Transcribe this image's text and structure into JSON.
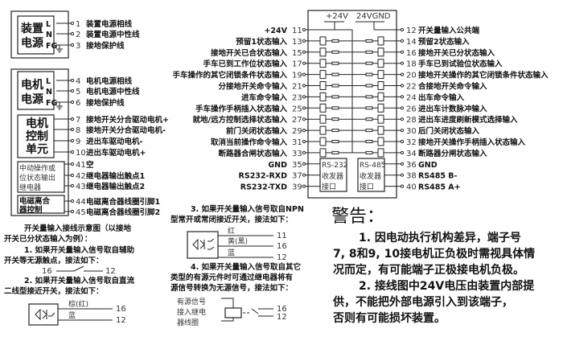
{
  "power_device": {
    "title1": "装置",
    "title2": "电源",
    "pins": [
      "L",
      "N",
      "FG"
    ],
    "terminals": [
      {
        "num": "1",
        "label": "装置电源相线"
      },
      {
        "num": "2",
        "label": "装置电源中性线"
      },
      {
        "num": "3",
        "label": "接地保护线"
      }
    ]
  },
  "power_motor": {
    "title1": "电机",
    "title2": "电源",
    "pins": [
      "L",
      "N",
      "FG"
    ],
    "terminals": [
      {
        "num": "4",
        "label": "电机电源相线"
      },
      {
        "num": "5",
        "label": "电机电源中性线"
      },
      {
        "num": "6",
        "label": "接地保护线"
      }
    ]
  },
  "motor_control": {
    "title": [
      "电机",
      "控制",
      "单元"
    ],
    "terminals": [
      {
        "num": "7",
        "label": "接地开关分合驱动电机+"
      },
      {
        "num": "8",
        "label": "接地开关分合驱动电机-"
      },
      {
        "num": "9",
        "label": "进出车驱动电机-"
      },
      {
        "num": "10",
        "label": "进出车驱动电机+"
      }
    ]
  },
  "relay": {
    "title": [
      "中动操作或",
      "位状态输出",
      "继电器"
    ],
    "terminals": [
      {
        "num": "41",
        "label": "空"
      },
      {
        "num": "42",
        "label": "继电器输出触点1"
      },
      {
        "num": "43",
        "label": "继电器输出触点2"
      }
    ]
  },
  "clutch": {
    "title": [
      "电磁离合",
      "器控制"
    ],
    "terminals": [
      {
        "num": "44",
        "label": "电磁离合器线圈引脚1"
      },
      {
        "num": "45",
        "label": "电磁离合器线圈引脚2"
      }
    ]
  },
  "io_block": {
    "bus_labels": [
      "+24V",
      "24VGND"
    ],
    "left": [
      {
        "num": "11",
        "label": "+24V"
      },
      {
        "num": "13",
        "label": "预留1状态输入"
      },
      {
        "num": "15",
        "label": "接地开关已合状态输入"
      },
      {
        "num": "17",
        "label": "手车已到工作位状态输入"
      },
      {
        "num": "19",
        "label": "手车操作的其它闭锁条件状态输入"
      },
      {
        "num": "21",
        "label": "分接地开关命令输入"
      },
      {
        "num": "23",
        "label": "进车命令输入"
      },
      {
        "num": "25",
        "label": "手车操作手柄插入状态输入"
      },
      {
        "num": "27",
        "label": "就地/远方控制选择状态输入"
      },
      {
        "num": "29",
        "label": "前门关闭状态输入"
      },
      {
        "num": "31",
        "label": "取消当前操作命令输入"
      },
      {
        "num": "33",
        "label": "断路器合闸状态输入"
      },
      {
        "num": "35",
        "label": "GND"
      },
      {
        "num": "37",
        "label": "RS232-RXD"
      },
      {
        "num": "39",
        "label": "RS232-TXD"
      }
    ],
    "right": [
      {
        "num": "12",
        "label": "开关量输入公共端"
      },
      {
        "num": "14",
        "label": "预留2状态输入"
      },
      {
        "num": "16",
        "label": "接地开关已分状态输入"
      },
      {
        "num": "18",
        "label": "手车已到试验位状态输入"
      },
      {
        "num": "20",
        "label": "接地开关操作的其它闭锁条件状态输入"
      },
      {
        "num": "22",
        "label": "合接地开关命令输入"
      },
      {
        "num": "24",
        "label": "出车命令输入"
      },
      {
        "num": "26",
        "label": "进出车计数脉冲输入"
      },
      {
        "num": "28",
        "label": "进出车进度刷新模式选择输入"
      },
      {
        "num": "30",
        "label": "后门关闭状态输入"
      },
      {
        "num": "32",
        "label": "接地开关操作手柄插入状态输入"
      },
      {
        "num": "34",
        "label": "断路器分闸状态输入"
      },
      {
        "num": "36",
        "label": "GND"
      },
      {
        "num": "38",
        "label": "RS485 B-"
      },
      {
        "num": "40",
        "label": "RS485 A+"
      }
    ],
    "rs232": [
      "RS-232",
      "收发器",
      "接口"
    ],
    "rs485": [
      "RS-485",
      "收发器",
      "接口"
    ]
  },
  "notes": {
    "intro": [
      "开关量输入接线示意图（以接地",
      "开关已分状态输入为例）："
    ],
    "n1": [
      "1. 如果开关量输入信号取自辅助",
      "开关等无源触点，接法如下："
    ],
    "n1_terms": [
      "16",
      "12"
    ],
    "n2": [
      "2. 如果开关量输入信号取自直流",
      "二线型接近开关，接法如下："
    ],
    "n2_wires": [
      {
        "color": "棕(红)",
        "term": "16"
      },
      {
        "color": "蓝",
        "term": "12"
      }
    ],
    "n3": [
      "3. 如果开关量输入信号取自NPN",
      "型常开或常闭接近开关，接法如下："
    ],
    "n3_wires": [
      {
        "color": "红",
        "term": "11"
      },
      {
        "color": "黄(黑)",
        "term": "16"
      },
      {
        "color": "蓝",
        "term": "12"
      }
    ],
    "n4": [
      "4. 如果开关量输入信号取自其它",
      "类型的有源元件时可通过继电器将有",
      "源信号转换为无源信号，接法如下："
    ],
    "n4_coil": [
      "有源信号",
      "接入继电",
      "器线圈"
    ],
    "n4_terms": [
      "16",
      "12"
    ]
  },
  "warning": {
    "title": "警告：",
    "lines": [
      "1. 因电动执行机构差异，端子号",
      "7, 8和9, 10接电机正负极时需视具体情",
      "况而定，有可能端子正极接电机负极。",
      "2. 接线图中24V电压由装置内部提",
      "供，不能把外部电源引入到该端子，",
      "否则有可能损坏装置。"
    ]
  }
}
